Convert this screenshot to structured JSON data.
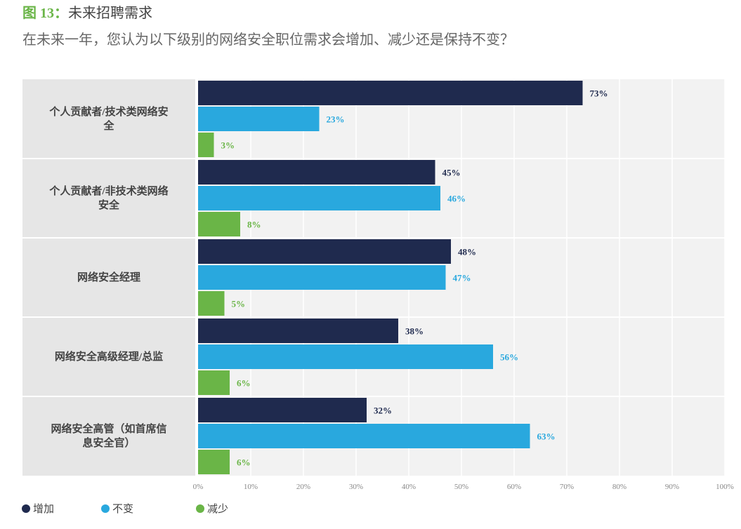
{
  "chart_data": {
    "type": "hbar",
    "figure_label": "图 13：",
    "title": "未来招聘需求",
    "subtitle": "在未来一年，您认为以下级别的网络安全职位需求会增加、减少还是保持不变？",
    "categories": [
      "个人贡献者/技术类网络安全",
      "个人贡献者/非技术类网络安全",
      "网络安全经理",
      "网络安全高级经理/总监",
      "网络安全高管（如首席信息安全官）"
    ],
    "series": [
      {
        "name": "增加",
        "color": "#1f2a4e",
        "values": [
          73,
          45,
          48,
          38,
          32
        ],
        "value_labels": [
          "73%",
          "45%",
          "48%",
          "38%",
          "32%"
        ]
      },
      {
        "name": "不变",
        "color": "#29a8de",
        "values": [
          23,
          46,
          47,
          56,
          63
        ],
        "value_labels": [
          "23%",
          "46%",
          "47%",
          "56%",
          "63%"
        ]
      },
      {
        "name": "减少",
        "color": "#6ab547",
        "values": [
          3,
          8,
          5,
          6,
          6
        ],
        "value_labels": [
          "3%",
          "8%",
          "5%",
          "6%",
          "6%"
        ]
      }
    ],
    "xlim": [
      0,
      100
    ],
    "xticks": [
      {
        "value": 0,
        "label": "0%"
      },
      {
        "value": 10,
        "label": "10%"
      },
      {
        "value": 20,
        "label": "20%"
      },
      {
        "value": 30,
        "label": "30%"
      },
      {
        "value": 40,
        "label": "40%"
      },
      {
        "value": 50,
        "label": "50%"
      },
      {
        "value": 60,
        "label": "60%"
      },
      {
        "value": 70,
        "label": "70%"
      },
      {
        "value": 80,
        "label": "80%"
      },
      {
        "value": 90,
        "label": "90%"
      },
      {
        "value": 100,
        "label": "100%"
      }
    ],
    "grid": true,
    "legend": "bottom-left"
  }
}
